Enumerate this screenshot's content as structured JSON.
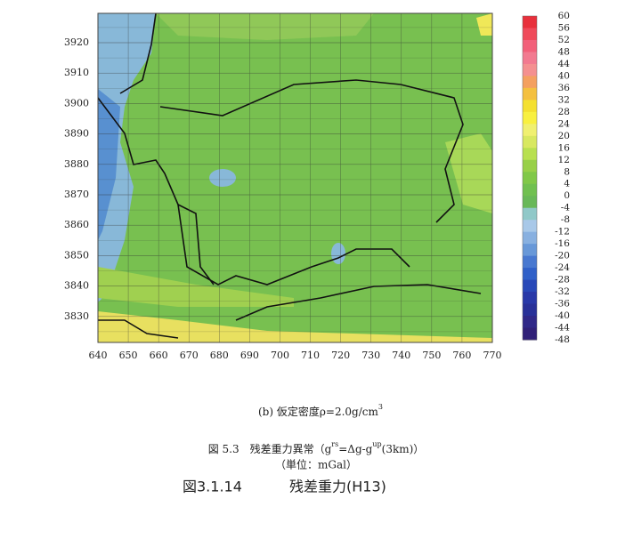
{
  "map": {
    "xticks": [
      640,
      650,
      660,
      670,
      680,
      690,
      700,
      710,
      720,
      730,
      740,
      750,
      760,
      770
    ],
    "yticks": [
      3920,
      3910,
      3900,
      3890,
      3880,
      3870,
      3860,
      3850,
      3840,
      3830
    ],
    "colorbar": {
      "labels": [
        60,
        56,
        52,
        48,
        44,
        40,
        36,
        32,
        28,
        24,
        20,
        16,
        12,
        8,
        4,
        0,
        -4,
        -8,
        -12,
        -16,
        -20,
        -24,
        -28,
        -32,
        -36,
        -40,
        -44,
        -48
      ],
      "colors": [
        "#e8303c",
        "#ef4a5a",
        "#f2607a",
        "#f27a90",
        "#f49090",
        "#f4a060",
        "#f4c040",
        "#f4e030",
        "#f8f040",
        "#f0f070",
        "#d8e860",
        "#b8e050",
        "#98d048",
        "#80c848",
        "#70c050",
        "#68b858",
        "#90c8c8",
        "#a8c8e8",
        "#88b0e0",
        "#6898d8",
        "#4878d0",
        "#3060c8",
        "#2848b8",
        "#2838a8",
        "#283098",
        "#302888",
        "#302078"
      ]
    }
  },
  "captions": {
    "sub": [
      "(b) 仮定密度ρ=2.0g/cm",
      "3"
    ],
    "fig": [
      "図 5.3　残差重力異常（g",
      "rs",
      "=Δg-g",
      "up",
      "(3km)）"
    ],
    "unit": "（単位：mGal）",
    "number": "図3.1.14",
    "name": "残差重力(H13)"
  }
}
